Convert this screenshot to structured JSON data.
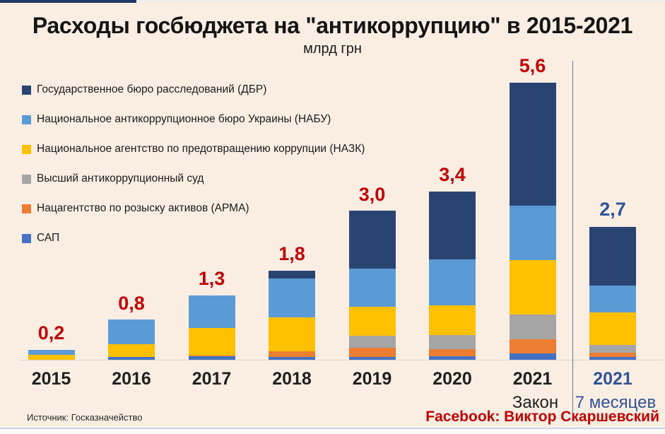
{
  "title": "Расходы госбюджета на \"антикоррупцию\" в 2015-2021",
  "subtitle": "млрд грн",
  "legend": {
    "items": [
      {
        "label": "Государственное бюро расследований (ДБР)",
        "color": "#2A4472"
      },
      {
        "label": "Национальное антикоррупционное бюро Украины (НАБУ)",
        "color": "#5B9BD5"
      },
      {
        "label": "Национальное агентство по предотвращению коррупции (НАЗК)",
        "color": "#FFC000"
      },
      {
        "label": "Высший антикоррупционный суд",
        "color": "#A5A5A5"
      },
      {
        "label": "Нацагентство по розыску активов (АРМА)",
        "color": "#ED7D31"
      },
      {
        "label": "САП",
        "color": "#4472C4"
      }
    ]
  },
  "chart_data": {
    "type": "bar",
    "stacked": true,
    "title": "Расходы госбюджета на \"антикоррупцию\" в 2015-2021",
    "unit": "млрд грн",
    "ylim": [
      0,
      6
    ],
    "grid": false,
    "legend_position": "top-left",
    "categories": [
      "2015",
      "2016",
      "2017",
      "2018",
      "2019",
      "2020",
      "2021",
      "2021"
    ],
    "category_sublabels": [
      "",
      "",
      "",
      "",
      "",
      "",
      "Закон",
      "7 месяцев"
    ],
    "category_label_colors": [
      "#1f1f1f",
      "#1f1f1f",
      "#1f1f1f",
      "#1f1f1f",
      "#1f1f1f",
      "#1f1f1f",
      "#1f1f1f",
      "#2F5496"
    ],
    "totals": [
      0.2,
      0.8,
      1.3,
      1.8,
      3.0,
      3.4,
      5.6,
      2.7
    ],
    "totals_display": [
      "0,2",
      "0,8",
      "1,3",
      "1,8",
      "3,0",
      "3,4",
      "5,6",
      "2,7"
    ],
    "totals_label_colors": [
      "#C00000",
      "#C00000",
      "#C00000",
      "#C00000",
      "#C00000",
      "#C00000",
      "#C00000",
      "#2F5496"
    ],
    "separator_between_categories": [
      6,
      7
    ],
    "series_stack_order": "bottom-to-top",
    "series": [
      {
        "name": "САП",
        "color": "#4472C4",
        "values": [
          0,
          0.05,
          0.07,
          0.05,
          0.06,
          0.07,
          0.13,
          0.06
        ]
      },
      {
        "name": "Нацагентство по розыску активов (АРМА)",
        "color": "#ED7D31",
        "values": [
          0,
          0,
          0.02,
          0.12,
          0.18,
          0.14,
          0.29,
          0.09
        ]
      },
      {
        "name": "Высший антикоррупционный суд",
        "color": "#A5A5A5",
        "values": [
          0,
          0,
          0,
          0,
          0.24,
          0.29,
          0.5,
          0.16
        ]
      },
      {
        "name": "Национальное агентство по предотвращению коррупции (НАЗК)",
        "color": "#FFC000",
        "values": [
          0.1,
          0.25,
          0.55,
          0.69,
          0.58,
          0.6,
          1.1,
          0.66
        ]
      },
      {
        "name": "Национальное антикоррупционное бюро Украины (НАБУ)",
        "color": "#5B9BD5",
        "values": [
          0.1,
          0.5,
          0.66,
          0.79,
          0.77,
          0.93,
          1.1,
          0.54
        ]
      },
      {
        "name": "Государственное бюро расследований (ДБР)",
        "color": "#2A4472",
        "values": [
          0,
          0,
          0,
          0.15,
          1.17,
          1.37,
          2.48,
          1.19
        ]
      }
    ]
  },
  "footer": {
    "source": "Источник: Госказначейство",
    "credit": "Facebook: Виктор Скаршевский"
  },
  "colors": {
    "background": "#FAEEE3",
    "value_label_red": "#C00000",
    "highlight_blue": "#2F5496",
    "axis_line": "#D8D1C7",
    "separator_line": "#64779E"
  }
}
